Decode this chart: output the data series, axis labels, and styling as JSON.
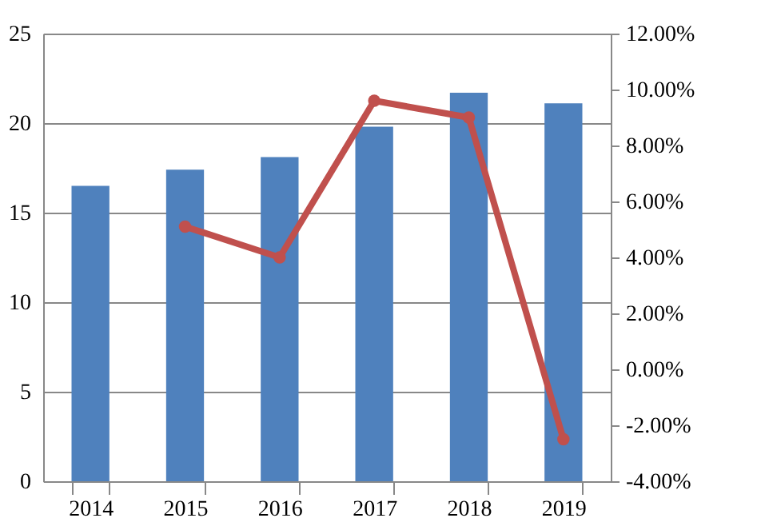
{
  "chart_data": {
    "type": "bar",
    "categories": [
      "2014",
      "2015",
      "2016",
      "2017",
      "2018",
      "2019"
    ],
    "series": [
      {
        "color": "#4f81bd",
        "values": [
          16.5,
          17.4,
          18.1,
          19.8,
          21.7,
          21.1
        ]
      },
      {
        "type": "line",
        "axis": "y2",
        "color": "#c0504d",
        "marker": "circle",
        "values": [
          null,
          5.1,
          4.0,
          9.6,
          9.0,
          -2.5
        ]
      }
    ],
    "ylim": [
      0,
      25
    ],
    "yticks": [
      0,
      5,
      10,
      15,
      20,
      25
    ],
    "y2lim": [
      -4,
      12
    ],
    "y2ticks": [
      {
        "value": -4,
        "label": "-4.00%"
      },
      {
        "value": -2,
        "label": "-2.00%"
      },
      {
        "value": 0,
        "label": "0.00%"
      },
      {
        "value": 2,
        "label": "2.00%"
      },
      {
        "value": 4,
        "label": "4.00%"
      },
      {
        "value": 6,
        "label": "6.00%"
      },
      {
        "value": 8,
        "label": "8.00%"
      },
      {
        "value": 10,
        "label": "10.00%"
      },
      {
        "value": 12,
        "label": "12.00%"
      }
    ],
    "grid": "y"
  }
}
